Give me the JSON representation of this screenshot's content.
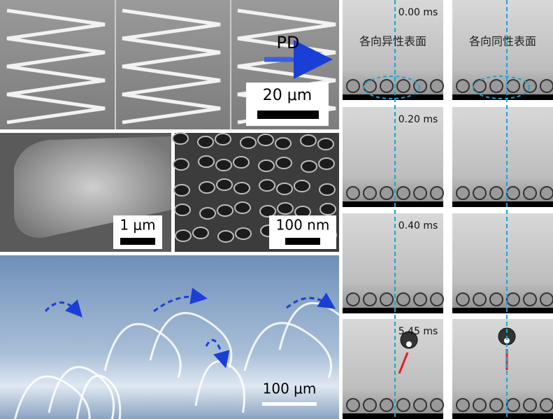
{
  "panels": {
    "sem_top": {
      "label": "PD",
      "scale_bar": "20 μm"
    },
    "sem_middle": {
      "left_scale_bar": "1 μm",
      "right_scale_bar": "100 nm"
    },
    "optical": {
      "scale_bar": "100 μm"
    },
    "droplets": {
      "columns": [
        "各向异性表面",
        "各向同性表面"
      ],
      "times": [
        "0.00 ms",
        "0.20 ms",
        "0.40 ms",
        "5.45 ms"
      ]
    }
  }
}
